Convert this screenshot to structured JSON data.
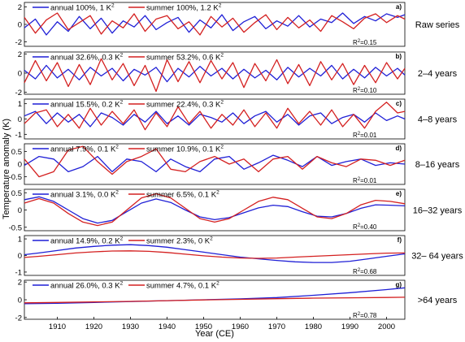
{
  "figure": {
    "ylabel": "Temperature anomaly (K)",
    "xlabel": "Year (CE)",
    "x_ticks": [
      "1910",
      "1920",
      "1930",
      "1940",
      "1950",
      "1960",
      "1970",
      "1980",
      "1990",
      "2000"
    ]
  },
  "colors": {
    "annual": "#1f1fd6",
    "summer": "#d42020",
    "axis": "#000000",
    "zero": "#aaaaaa"
  },
  "chart_data": [
    {
      "type": "line",
      "panel_letter": "a)",
      "band_label": "Raw series",
      "legend": {
        "annual": "annual 100%, 1 K",
        "summer": "summer 100%, 1.2 K"
      },
      "r2": {
        "label": "R",
        "value": "=0.15"
      },
      "y_ticks": [
        "2",
        "0",
        "-2"
      ],
      "ylim": [
        -2.5,
        2.5
      ],
      "xlim": [
        1901,
        2005
      ],
      "series": [
        {
          "name": "annual",
          "x": [
            1901,
            1904,
            1907,
            1910,
            1913,
            1916,
            1919,
            1922,
            1925,
            1928,
            1931,
            1934,
            1937,
            1940,
            1943,
            1946,
            1949,
            1952,
            1955,
            1958,
            1961,
            1964,
            1967,
            1970,
            1973,
            1976,
            1979,
            1982,
            1985,
            1988,
            1991,
            1994,
            1997,
            2000,
            2003,
            2005
          ],
          "values": [
            -0.4,
            0.6,
            -1.2,
            0.3,
            -0.8,
            0.9,
            -0.5,
            0.7,
            -1.0,
            0.4,
            -0.3,
            1.0,
            -0.6,
            0.2,
            0.8,
            -0.9,
            0.5,
            -0.4,
            1.1,
            -0.7,
            0.3,
            0.9,
            -0.5,
            0.4,
            -0.2,
            1.0,
            -0.3,
            0.6,
            0.2,
            1.3,
            0.1,
            0.9,
            0.4,
            1.2,
            0.8,
            1.1
          ]
        },
        {
          "name": "summer",
          "x": [
            1901,
            1904,
            1907,
            1910,
            1913,
            1916,
            1919,
            1922,
            1925,
            1928,
            1931,
            1934,
            1937,
            1940,
            1943,
            1946,
            1949,
            1952,
            1955,
            1958,
            1961,
            1964,
            1967,
            1970,
            1973,
            1976,
            1979,
            1982,
            1985,
            1988,
            1991,
            1994,
            1997,
            2000,
            2003,
            2005
          ],
          "values": [
            0.8,
            -1.0,
            0.5,
            1.3,
            -0.6,
            0.2,
            1.0,
            -1.1,
            0.4,
            -0.4,
            1.2,
            -0.8,
            0.6,
            1.0,
            -0.5,
            0.3,
            -1.2,
            0.9,
            -0.3,
            0.7,
            -0.9,
            0.2,
            1.1,
            -0.6,
            0.8,
            -0.4,
            0.5,
            -0.8,
            1.0,
            0.3,
            -0.5,
            0.7,
            1.2,
            0.2,
            1.0,
            0.6
          ]
        }
      ]
    },
    {
      "type": "line",
      "panel_letter": "b)",
      "band_label": "2–4 years",
      "legend": {
        "annual": "annual 32.6%, 0.3 K",
        "summer": "summer 53.2%, 0.6 K"
      },
      "r2": {
        "label": "R",
        "value": "=0.10"
      },
      "y_ticks": [
        "2",
        "0",
        "-2"
      ],
      "ylim": [
        -2.2,
        2.2
      ],
      "xlim": [
        1901,
        2005
      ],
      "series": [
        {
          "name": "annual",
          "x": [
            1901,
            1904,
            1907,
            1910,
            1913,
            1916,
            1919,
            1922,
            1925,
            1928,
            1931,
            1934,
            1937,
            1940,
            1943,
            1946,
            1949,
            1952,
            1955,
            1958,
            1961,
            1964,
            1967,
            1970,
            1973,
            1976,
            1979,
            1982,
            1985,
            1988,
            1991,
            1994,
            1997,
            2000,
            2003,
            2005
          ],
          "values": [
            0.3,
            -0.6,
            0.8,
            -0.5,
            0.4,
            -0.7,
            0.6,
            -0.3,
            0.5,
            -0.8,
            0.4,
            -0.2,
            0.6,
            -0.9,
            0.5,
            -0.4,
            0.7,
            -0.3,
            0.5,
            -0.6,
            0.4,
            -0.5,
            0.3,
            -0.7,
            0.6,
            -0.4,
            0.5,
            -0.3,
            0.8,
            -0.6,
            0.4,
            -0.5,
            0.6,
            -0.3,
            0.5,
            -0.2
          ]
        },
        {
          "name": "summer",
          "x": [
            1901,
            1904,
            1907,
            1910,
            1913,
            1916,
            1919,
            1922,
            1925,
            1928,
            1931,
            1934,
            1937,
            1940,
            1943,
            1946,
            1949,
            1952,
            1955,
            1958,
            1961,
            1964,
            1967,
            1970,
            1973,
            1976,
            1979,
            1982,
            1985,
            1988,
            1991,
            1994,
            1997,
            2000,
            2003,
            2005
          ],
          "values": [
            -1.0,
            1.3,
            -0.8,
            1.1,
            -1.4,
            0.9,
            -1.2,
            1.5,
            -0.7,
            1.0,
            -1.3,
            0.8,
            -1.9,
            1.4,
            -0.9,
            1.2,
            -1.0,
            1.3,
            -0.6,
            1.1,
            -1.5,
            1.0,
            -0.8,
            1.4,
            -1.1,
            0.9,
            -1.3,
            1.2,
            -0.7,
            1.0,
            -1.2,
            0.8,
            -1.0,
            1.1,
            -0.6,
            0.5
          ]
        }
      ]
    },
    {
      "type": "line",
      "panel_letter": "c)",
      "band_label": "4–8 years",
      "legend": {
        "annual": "annual 15.5%, 0.2 K",
        "summer": "summer 22.4%, 0.3 K"
      },
      "r2": {
        "label": "R",
        "value": "=0.01"
      },
      "y_ticks": [
        "1",
        "0",
        "-1"
      ],
      "ylim": [
        -1.3,
        1.3
      ],
      "xlim": [
        1901,
        2005
      ],
      "series": [
        {
          "name": "annual",
          "x": [
            1901,
            1904,
            1907,
            1910,
            1913,
            1916,
            1919,
            1922,
            1925,
            1928,
            1931,
            1934,
            1937,
            1940,
            1943,
            1946,
            1949,
            1952,
            1955,
            1958,
            1961,
            1964,
            1967,
            1970,
            1973,
            1976,
            1979,
            1982,
            1985,
            1988,
            1991,
            1994,
            1997,
            2000,
            2003,
            2005
          ],
          "values": [
            0.2,
            0.5,
            -0.3,
            0.4,
            -0.2,
            0.3,
            -0.5,
            0.4,
            0.1,
            -0.4,
            0.3,
            -0.2,
            0.5,
            -0.3,
            0.2,
            -0.4,
            0.3,
            0.1,
            -0.2,
            0.4,
            -0.3,
            0.2,
            0.5,
            -0.2,
            0.3,
            -0.4,
            0.2,
            0.4,
            -0.3,
            0.1,
            0.3,
            -0.2,
            0.4,
            -0.1,
            0.2,
            0.0
          ]
        },
        {
          "name": "summer",
          "x": [
            1901,
            1904,
            1907,
            1910,
            1913,
            1916,
            1919,
            1922,
            1925,
            1928,
            1931,
            1934,
            1937,
            1940,
            1943,
            1946,
            1949,
            1952,
            1955,
            1958,
            1961,
            1964,
            1967,
            1970,
            1973,
            1976,
            1979,
            1982,
            1985,
            1988,
            1991,
            1994,
            1997,
            2000,
            2003,
            2005
          ],
          "values": [
            -0.3,
            0.4,
            0.6,
            -0.5,
            0.3,
            -0.6,
            0.7,
            -0.4,
            0.5,
            -0.3,
            0.6,
            -0.7,
            0.4,
            -0.5,
            0.8,
            -0.3,
            0.5,
            -0.6,
            0.3,
            -0.4,
            0.6,
            -0.5,
            0.4,
            -0.6,
            0.7,
            -0.3,
            0.5,
            -0.4,
            0.6,
            -0.5,
            0.3,
            -0.6,
            0.5,
            1.1,
            0.4,
            0.5
          ]
        }
      ]
    },
    {
      "type": "line",
      "panel_letter": "d)",
      "band_label": "8–16 years",
      "legend": {
        "annual": "annual 7.9%, 0.1 K",
        "summer": "summer 10.9%, 0.1 K"
      },
      "r2": {
        "label": "R",
        "value": "=0.01"
      },
      "y_ticks": [
        "0.5",
        "0",
        "-0.5"
      ],
      "ylim": [
        -0.8,
        0.8
      ],
      "xlim": [
        1901,
        2005
      ],
      "series": [
        {
          "name": "annual",
          "x": [
            1901,
            1905,
            1909,
            1913,
            1917,
            1921,
            1925,
            1929,
            1933,
            1937,
            1941,
            1945,
            1949,
            1953,
            1957,
            1961,
            1965,
            1969,
            1973,
            1977,
            1981,
            1985,
            1989,
            1993,
            1997,
            2001,
            2005
          ],
          "values": [
            -0.05,
            0.3,
            0.2,
            -0.3,
            -0.1,
            0.3,
            -0.3,
            0.2,
            0.1,
            -0.3,
            0.2,
            -0.1,
            -0.3,
            0.2,
            0.3,
            -0.2,
            0.05,
            0.35,
            0.15,
            -0.1,
            0.3,
            -0.05,
            0.1,
            0.2,
            -0.05,
            0.05,
            0.0
          ]
        },
        {
          "name": "summer",
          "x": [
            1901,
            1905,
            1909,
            1913,
            1917,
            1921,
            1925,
            1929,
            1933,
            1937,
            1941,
            1945,
            1949,
            1953,
            1957,
            1961,
            1965,
            1969,
            1973,
            1977,
            1981,
            1985,
            1989,
            1993,
            1997,
            2001,
            2005
          ],
          "values": [
            0.2,
            -0.5,
            -0.3,
            0.55,
            0.7,
            0.1,
            -0.4,
            0.1,
            0.3,
            0.6,
            -0.2,
            -0.3,
            0.1,
            0.3,
            0.0,
            0.2,
            -0.3,
            0.2,
            0.3,
            -0.2,
            0.3,
            0.05,
            -0.1,
            0.2,
            0.15,
            -0.05,
            0.15
          ]
        }
      ]
    },
    {
      "type": "line",
      "panel_letter": "e)",
      "band_label": "16–32 years",
      "legend": {
        "annual": "annual 3.1%, 0.0 K",
        "summer": "summer 6.5%, 0.1 K"
      },
      "r2": {
        "label": "R",
        "value": "=0.40"
      },
      "y_ticks": [
        "0.5",
        "0",
        "-0.5"
      ],
      "ylim": [
        -0.6,
        0.6
      ],
      "xlim": [
        1901,
        2005
      ],
      "series": [
        {
          "name": "annual",
          "x": [
            1901,
            1905,
            1909,
            1913,
            1917,
            1921,
            1925,
            1929,
            1933,
            1937,
            1941,
            1945,
            1949,
            1953,
            1957,
            1961,
            1965,
            1969,
            1973,
            1977,
            1981,
            1985,
            1989,
            1993,
            1997,
            2001,
            2005
          ],
          "values": [
            0.3,
            0.38,
            0.25,
            0.0,
            -0.25,
            -0.38,
            -0.3,
            -0.05,
            0.2,
            0.32,
            0.22,
            0.0,
            -0.2,
            -0.28,
            -0.22,
            -0.08,
            0.06,
            0.14,
            0.1,
            -0.05,
            -0.18,
            -0.2,
            -0.1,
            0.05,
            0.15,
            0.14,
            0.12
          ]
        },
        {
          "name": "summer",
          "x": [
            1901,
            1905,
            1909,
            1913,
            1917,
            1921,
            1925,
            1929,
            1933,
            1937,
            1941,
            1945,
            1949,
            1953,
            1957,
            1961,
            1965,
            1969,
            1973,
            1977,
            1981,
            1985,
            1989,
            1993,
            1997,
            2001,
            2005
          ],
          "values": [
            0.2,
            0.33,
            0.2,
            -0.1,
            -0.35,
            -0.45,
            -0.35,
            0.0,
            0.35,
            0.47,
            0.35,
            0.05,
            -0.25,
            -0.35,
            -0.25,
            0.0,
            0.25,
            0.37,
            0.3,
            0.05,
            -0.2,
            -0.25,
            -0.1,
            0.15,
            0.28,
            0.25,
            0.18
          ]
        }
      ]
    },
    {
      "type": "line",
      "panel_letter": "f)",
      "band_label": "32– 64 years",
      "legend": {
        "annual": "annual 14.9%, 0.2 K",
        "summer": "summer 2.3%, 0 K"
      },
      "r2": {
        "label": "R",
        "value": "=0.68"
      },
      "y_ticks": [
        "1",
        "0",
        "-1"
      ],
      "ylim": [
        -1.2,
        1.2
      ],
      "xlim": [
        1901,
        2005
      ],
      "series": [
        {
          "name": "annual",
          "x": [
            1901,
            1905,
            1910,
            1915,
            1920,
            1925,
            1930,
            1935,
            1940,
            1945,
            1950,
            1955,
            1960,
            1965,
            1970,
            1975,
            1980,
            1985,
            1990,
            1995,
            2000,
            2005
          ],
          "values": [
            0.05,
            0.15,
            0.3,
            0.45,
            0.55,
            0.62,
            0.65,
            0.6,
            0.5,
            0.35,
            0.2,
            0.05,
            -0.1,
            -0.2,
            -0.3,
            -0.38,
            -0.42,
            -0.42,
            -0.35,
            -0.2,
            -0.05,
            0.1
          ]
        },
        {
          "name": "summer",
          "x": [
            1901,
            1905,
            1910,
            1915,
            1920,
            1925,
            1930,
            1935,
            1940,
            1945,
            1950,
            1955,
            1960,
            1965,
            1970,
            1975,
            1980,
            1985,
            1990,
            1995,
            2000,
            2005
          ],
          "values": [
            -0.12,
            -0.05,
            0.05,
            0.15,
            0.22,
            0.27,
            0.28,
            0.25,
            0.18,
            0.08,
            -0.02,
            -0.1,
            -0.15,
            -0.17,
            -0.15,
            -0.1,
            -0.05,
            0.0,
            0.05,
            0.1,
            0.14,
            0.15
          ]
        }
      ]
    },
    {
      "type": "line",
      "panel_letter": "g)",
      "band_label": ">64 years",
      "legend": {
        "annual": "annual 26.0%, 0.3 K",
        "summer": "summer 4.7%, 0.1 K"
      },
      "r2": {
        "label": "R",
        "value": "=0.78"
      },
      "y_ticks": [
        "2",
        "0",
        "-2"
      ],
      "ylim": [
        -2.2,
        2.2
      ],
      "xlim": [
        1901,
        2005
      ],
      "series": [
        {
          "name": "annual",
          "x": [
            1901,
            1910,
            1920,
            1930,
            1940,
            1950,
            1960,
            1970,
            1980,
            1990,
            2000,
            2005
          ],
          "values": [
            -0.45,
            -0.4,
            -0.3,
            -0.2,
            -0.1,
            0.0,
            0.1,
            0.25,
            0.5,
            0.8,
            1.15,
            1.35
          ]
        },
        {
          "name": "summer",
          "x": [
            1901,
            1910,
            1920,
            1930,
            1940,
            1950,
            1960,
            1970,
            1980,
            1990,
            2000,
            2005
          ],
          "values": [
            -0.35,
            -0.3,
            -0.25,
            -0.18,
            -0.1,
            -0.02,
            0.05,
            0.12,
            0.18,
            0.22,
            0.26,
            0.28
          ]
        }
      ]
    }
  ]
}
